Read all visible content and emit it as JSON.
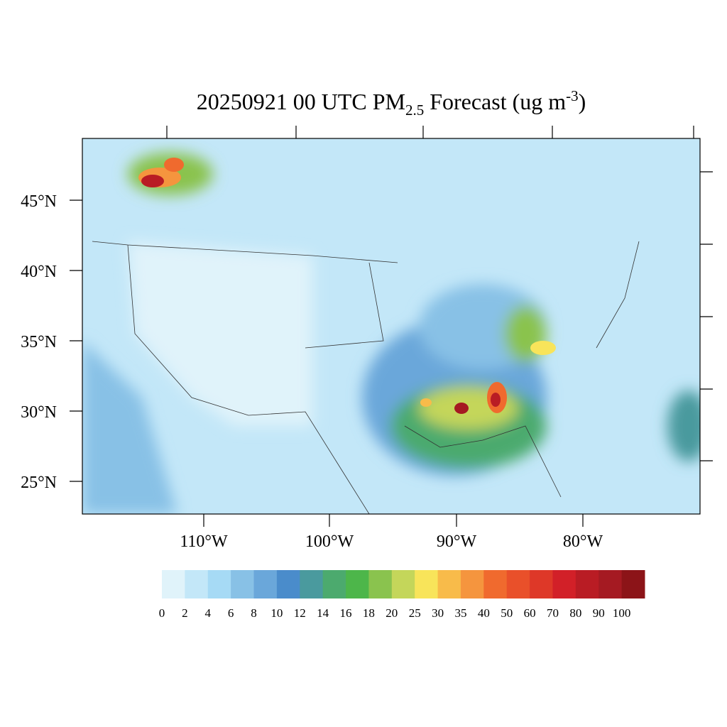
{
  "title": {
    "prefix": "20250921 00 UTC PM",
    "subscript": "2.5",
    "middle": " Forecast (ug m",
    "superscript": "-3",
    "suffix": ")"
  },
  "lat_labels": [
    "45°N",
    "40°N",
    "35°N",
    "30°N",
    "25°N"
  ],
  "lon_labels": [
    "110°W",
    "100°W",
    "90°W",
    "80°W"
  ],
  "colorbar": {
    "levels": [
      0,
      2,
      4,
      6,
      8,
      10,
      12,
      14,
      16,
      18,
      20,
      25,
      30,
      35,
      40,
      50,
      60,
      70,
      80,
      90,
      100
    ],
    "colors": [
      "#e0f3fa",
      "#c3e7f8",
      "#a6daf5",
      "#88c1e6",
      "#6aa7da",
      "#4a8ccb",
      "#4a9a9e",
      "#4caa6e",
      "#4db64a",
      "#8ac34e",
      "#c4d65a",
      "#f8e45a",
      "#f8bb4a",
      "#f5953e",
      "#f06a2e",
      "#e9502a",
      "#de3828",
      "#d22028",
      "#b91c24",
      "#a51a22",
      "#8c1418"
    ]
  }
}
